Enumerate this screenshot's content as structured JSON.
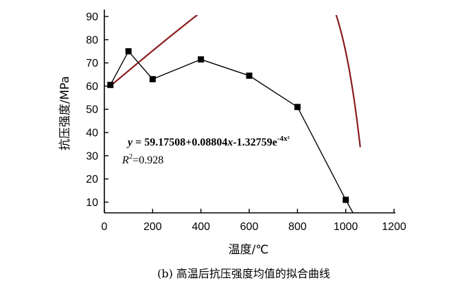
{
  "chart_data": {
    "type": "line",
    "xlabel": "温度/℃",
    "ylabel": "抗压强度/MPa",
    "caption": "(b) 高温后抗压强度均值的拟合曲线",
    "xlim": [
      0,
      1200
    ],
    "ylim": [
      5,
      90
    ],
    "x_ticks": [
      0,
      200,
      400,
      600,
      800,
      1000,
      1200
    ],
    "y_ticks": [
      10,
      20,
      30,
      40,
      50,
      60,
      70,
      80,
      90
    ],
    "grid": false,
    "series": [
      {
        "kind": "measured",
        "marker": "square",
        "color": "#000000",
        "x": [
          25,
          100,
          200,
          400,
          600,
          800,
          1000
        ],
        "y": [
          60.5,
          75,
          63,
          71.5,
          64.5,
          51,
          11
        ]
      },
      {
        "kind": "fit",
        "color": "#8b1a1a",
        "coeffs": {
          "a": 59.17508,
          "b": 0.08804,
          "c": 1.32759,
          "k": 4
        },
        "x_range": [
          20,
          1060
        ]
      }
    ],
    "annotation": {
      "line1": {
        "y": "y",
        "mid": " = 59.17508+0.08804",
        "x": "x",
        "tail": "-1.32759e",
        "sup": "-4x²"
      },
      "line2": {
        "r": "R",
        "sup": "2",
        "tail": "=0.928"
      },
      "arrow_target_x": 705
    }
  }
}
